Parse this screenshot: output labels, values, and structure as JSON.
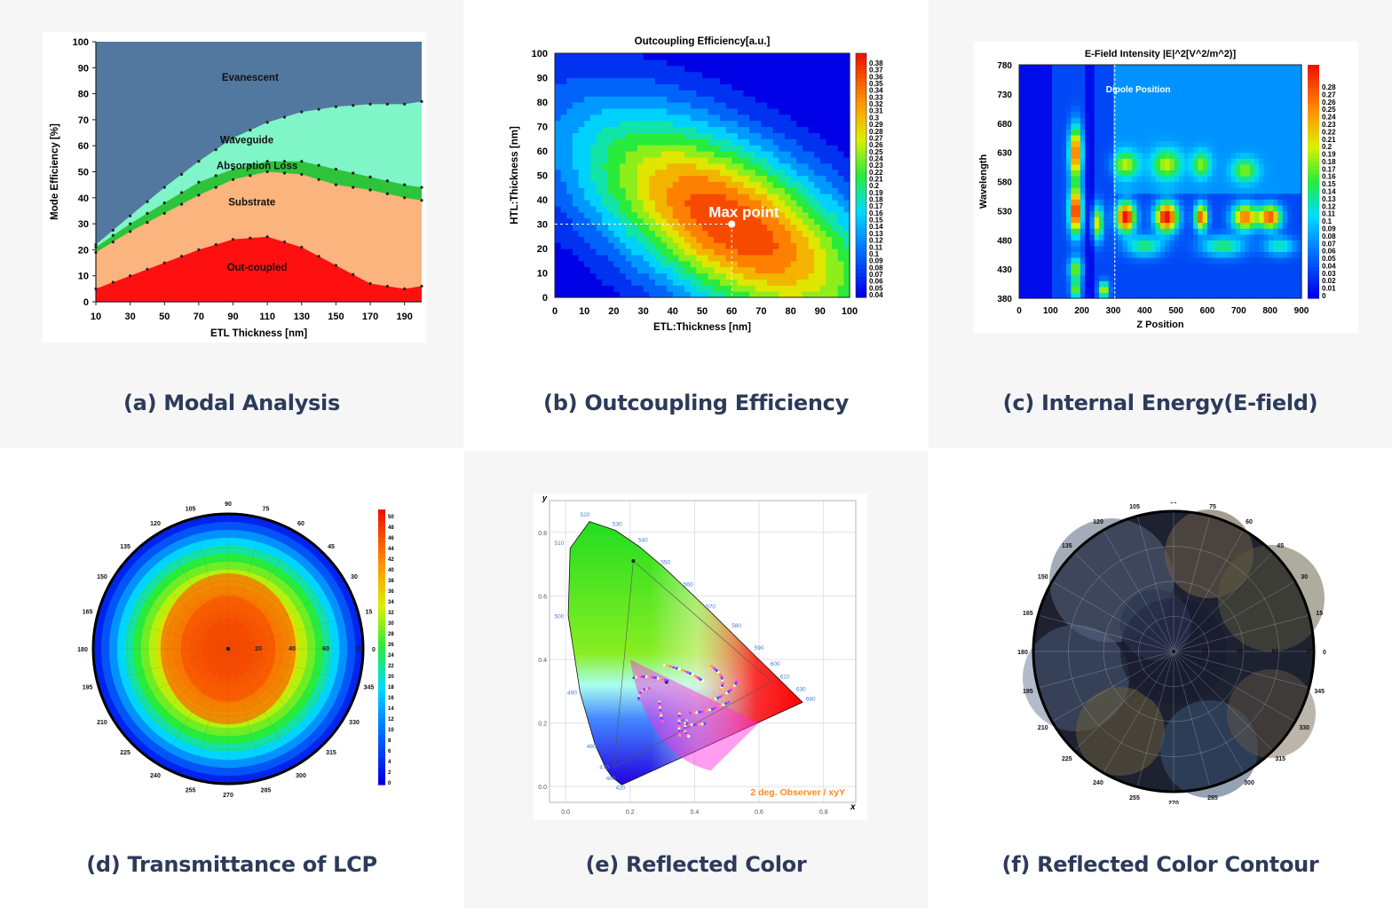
{
  "panels": {
    "a": {
      "caption": "(a) Modal Analysis"
    },
    "b": {
      "caption": "(b) Outcoupling Efficiency"
    },
    "c": {
      "caption": "(c) Internal Energy(E-field)"
    },
    "d": {
      "caption": "(d) Transmittance of LCP"
    },
    "e": {
      "caption": "(e) Reflected Color"
    },
    "f": {
      "caption": "(f) Reflected Color Contour"
    }
  },
  "chart_data": [
    {
      "id": "a",
      "type": "area",
      "stacked": true,
      "xlabel": "ETL Thickness [nm]",
      "ylabel": "Mode Efficiency [%]",
      "xlim": [
        10,
        200
      ],
      "ylim": [
        0,
        100
      ],
      "xticks": [
        10,
        30,
        50,
        70,
        90,
        110,
        130,
        150,
        170,
        190
      ],
      "yticks": [
        0,
        10,
        20,
        30,
        40,
        50,
        60,
        70,
        80,
        90,
        100
      ],
      "x": [
        10,
        30,
        50,
        70,
        90,
        110,
        130,
        150,
        170,
        190,
        200
      ],
      "boundaries": [
        {
          "name": "Out-coupled",
          "top": [
            5,
            10,
            15,
            20,
            24,
            25,
            21,
            14,
            7,
            5,
            6
          ],
          "color": "#ff1010"
        },
        {
          "name": "Substrate",
          "top": [
            19,
            27,
            34,
            41,
            47,
            50,
            49,
            45,
            43,
            40,
            39
          ],
          "color": "#fbb47d"
        },
        {
          "name": "Absorption Loss",
          "top": [
            21,
            30,
            38,
            46,
            51,
            54,
            54,
            51,
            48,
            45,
            44
          ],
          "color": "#2dc43b"
        },
        {
          "name": "Waveguide",
          "top": [
            22,
            33,
            44,
            54,
            63,
            69,
            73,
            75,
            76,
            76,
            77
          ],
          "color": "#80f5c8"
        },
        {
          "name": "Evanescent",
          "top": [
            100,
            100,
            100,
            100,
            100,
            100,
            100,
            100,
            100,
            100,
            100
          ],
          "color": "#53789f"
        }
      ],
      "labels": [
        "Evanescent",
        "Waveguide",
        "Absorption Loss",
        "Substrate",
        "Out-coupled"
      ]
    },
    {
      "id": "b",
      "type": "heatmap",
      "title": "Outcoupling Efficiency[a.u.]",
      "xlabel": "ETL:Thickness [nm]",
      "ylabel": "HTL:Thickness [nm]",
      "xlim": [
        0,
        100
      ],
      "ylim": [
        0,
        100
      ],
      "xticks": [
        0,
        10,
        20,
        30,
        40,
        50,
        60,
        70,
        80,
        90,
        100
      ],
      "yticks": [
        0,
        10,
        20,
        30,
        40,
        50,
        60,
        70,
        80,
        90,
        100
      ],
      "annotation": {
        "text": "Max point",
        "x": 60,
        "y": 30
      },
      "colorbar_ticks": [
        "0.38",
        "0.37",
        "0.36",
        "0.35",
        "0.34",
        "0.33",
        "0.32",
        "0.31",
        "0.3",
        "0.29",
        "0.28",
        "0.27",
        "0.26",
        "0.25",
        "0.24",
        "0.23",
        "0.22",
        "0.21",
        "0.2",
        "0.19",
        "0.18",
        "0.17",
        "0.16",
        "0.15",
        "0.14",
        "0.13",
        "0.12",
        "0.11",
        "0.1",
        "0.09",
        "0.08",
        "0.07",
        "0.06",
        "0.05",
        "0.04"
      ],
      "zlim": [
        0.04,
        0.38
      ]
    },
    {
      "id": "c",
      "type": "heatmap",
      "title": "E-Field Intensity |E|^2[V^2/m^2)]",
      "xlabel": "Z Position",
      "ylabel": "Wavelength",
      "xlim": [
        0,
        900
      ],
      "ylim": [
        380,
        780
      ],
      "xticks": [
        0,
        100,
        200,
        300,
        400,
        500,
        600,
        700,
        800,
        900
      ],
      "yticks": [
        380,
        430,
        480,
        530,
        580,
        630,
        680,
        730,
        780
      ],
      "annotation": {
        "text": "Dipole Position",
        "x": 305
      },
      "colorbar_ticks": [
        "0.28",
        "0.27",
        "0.26",
        "0.25",
        "0.24",
        "0.23",
        "0.22",
        "0.21",
        "0.2",
        "0.19",
        "0.18",
        "0.17",
        "0.16",
        "0.15",
        "0.14",
        "0.13",
        "0.12",
        "0.11",
        "0.1",
        "0.09",
        "0.08",
        "0.07",
        "0.06",
        "0.05",
        "0.04",
        "0.03",
        "0.02",
        "0.01",
        "0"
      ],
      "zlim": [
        0,
        0.28
      ]
    },
    {
      "id": "d",
      "type": "heatmap",
      "subtype": "polar",
      "angle_ticks": [
        "90",
        "75",
        "60",
        "45",
        "30",
        "15",
        "0",
        "345",
        "330",
        "315",
        "300",
        "285",
        "270",
        "255",
        "240",
        "225",
        "210",
        "195",
        "180",
        "165",
        "150",
        "135",
        "120",
        "105"
      ],
      "radial_ticks": [
        "20",
        "40",
        "60",
        "80"
      ],
      "colorbar_ticks": [
        "50",
        "48",
        "46",
        "44",
        "42",
        "40",
        "38",
        "36",
        "34",
        "32",
        "30",
        "28",
        "26",
        "24",
        "22",
        "20",
        "18",
        "16",
        "14",
        "12",
        "10",
        "8",
        "6",
        "4",
        "2",
        "0"
      ],
      "zlim": [
        0,
        50
      ]
    },
    {
      "id": "e",
      "type": "scatter",
      "subtype": "cie-1931-chromaticity",
      "xlabel": "x",
      "ylabel": "y",
      "xticks": [
        "0.0",
        "0.2",
        "0.4",
        "0.6",
        "0.8"
      ],
      "yticks": [
        "0.0",
        "0.2",
        "0.4",
        "0.6",
        "0.8"
      ],
      "xlim": [
        -0.05,
        0.9
      ],
      "ylim": [
        -0.05,
        0.9
      ],
      "wavelength_labels": [
        "420",
        "460",
        "470",
        "480",
        "490",
        "500",
        "510",
        "520",
        "530",
        "540",
        "550",
        "560",
        "570",
        "580",
        "590",
        "600",
        "610",
        "630",
        "680"
      ],
      "annotation": "2 deg. Observer / xyY"
    },
    {
      "id": "f",
      "type": "heatmap",
      "subtype": "polar",
      "angle_ticks": [
        "90",
        "75",
        "60",
        "45",
        "30",
        "15",
        "0",
        "345",
        "330",
        "315",
        "300",
        "285",
        "270",
        "255",
        "240",
        "225",
        "210",
        "195",
        "180",
        "165",
        "150",
        "135",
        "120",
        "105"
      ],
      "radial_ticks": [
        "20",
        "40",
        "60",
        "80"
      ]
    }
  ]
}
